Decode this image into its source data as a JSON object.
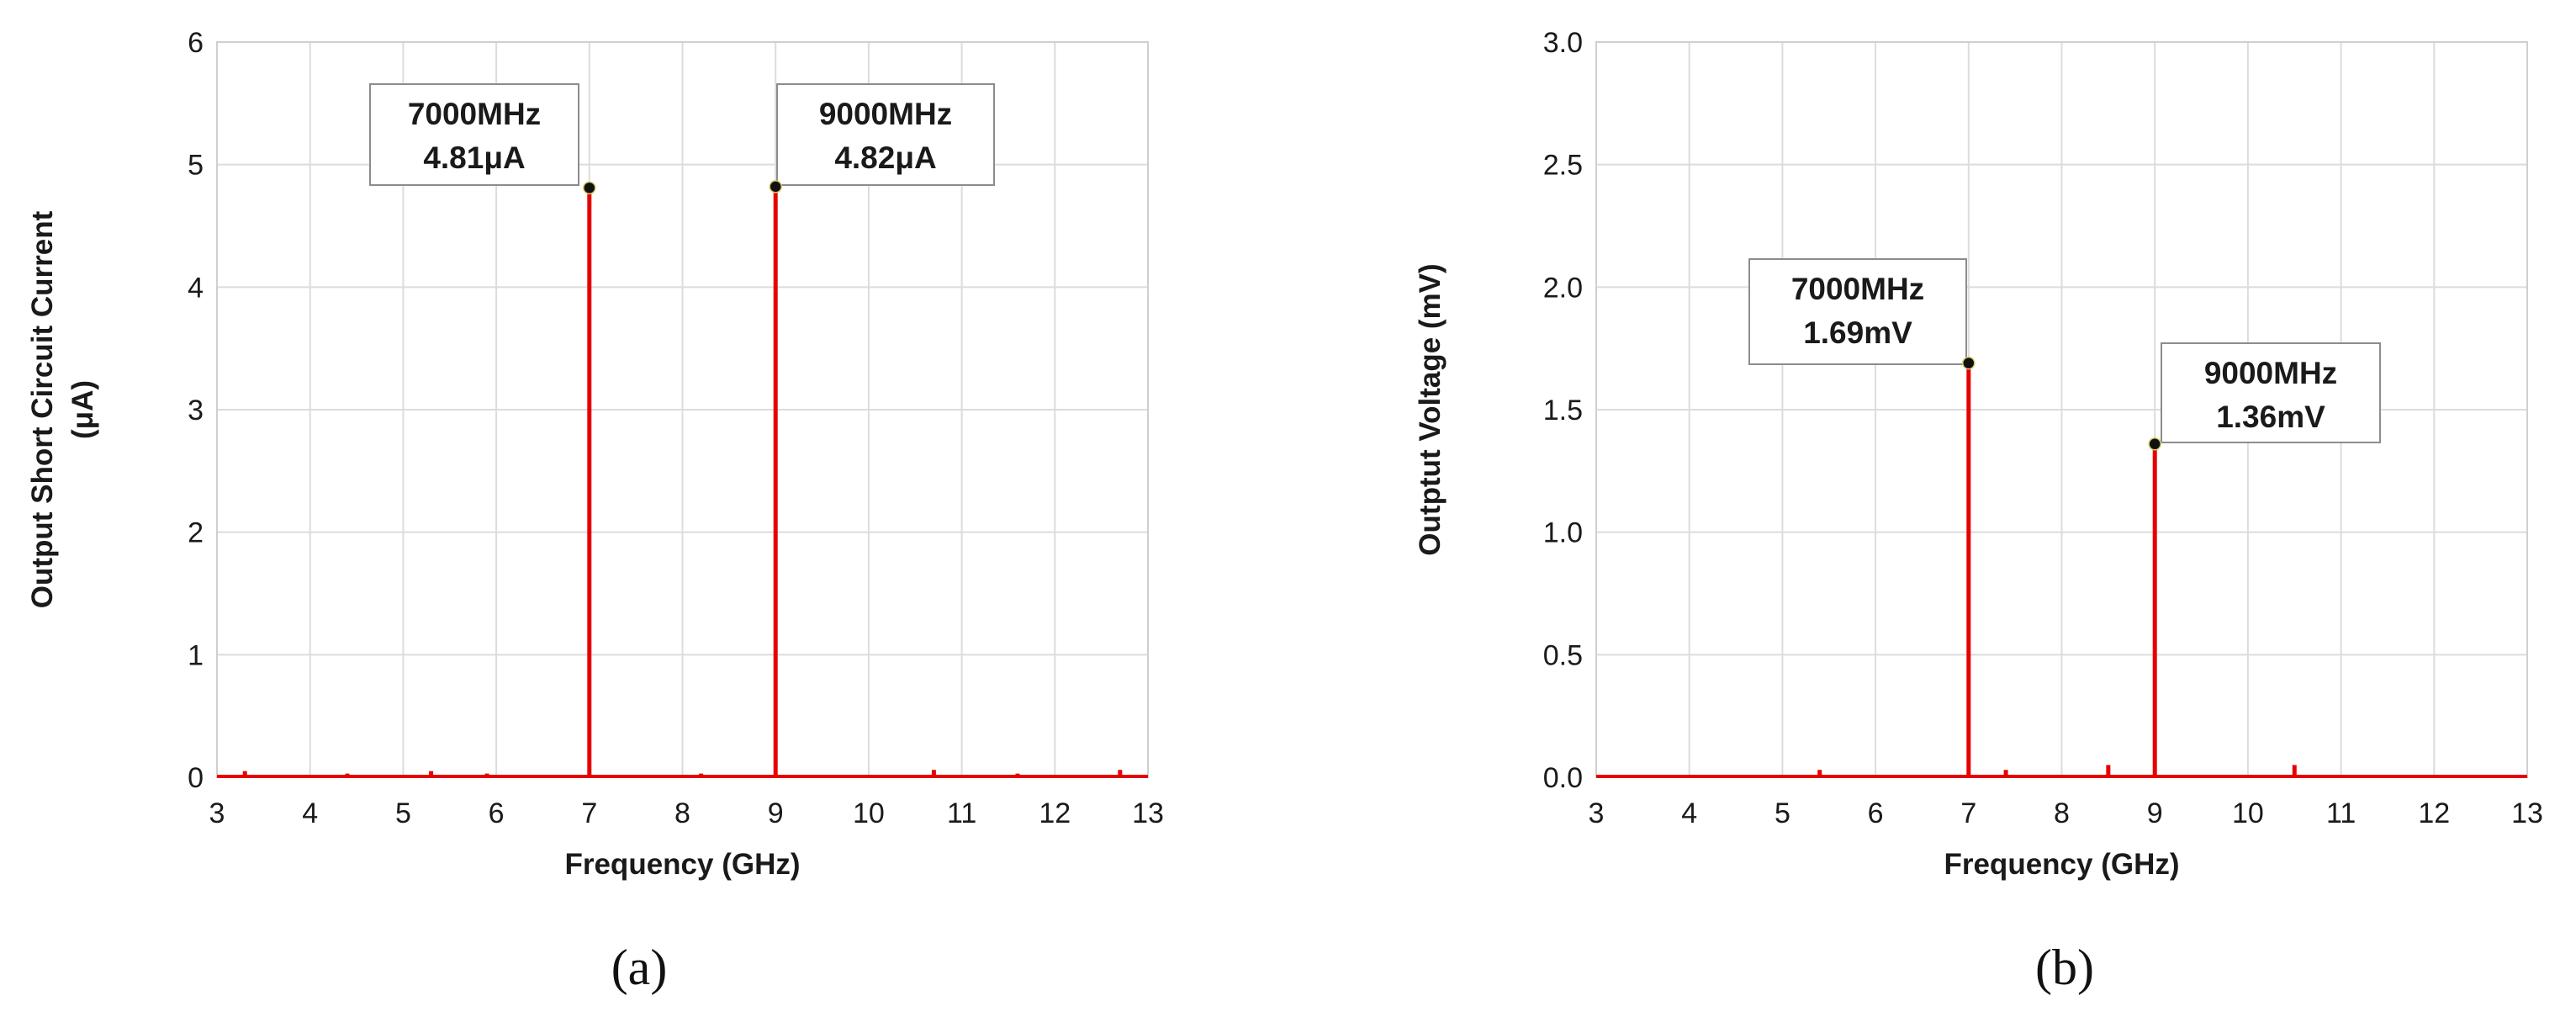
{
  "chart_data": [
    {
      "type": "line",
      "panel_label": "(a)",
      "xlabel": "Frequency (GHz)",
      "ylabel_lines": [
        "Output Short Circuit Current",
        "(μA)"
      ],
      "xlim": [
        3,
        13
      ],
      "ylim": [
        0,
        6
      ],
      "x_ticks": [
        "3",
        "4",
        "5",
        "6",
        "7",
        "8",
        "9",
        "10",
        "11",
        "12",
        "13"
      ],
      "y_ticks": [
        "0",
        "1",
        "2",
        "3",
        "4",
        "5",
        "6"
      ],
      "grid": true,
      "series": [
        {
          "x": [
            3,
            3.3,
            5.3,
            7.0,
            9.0,
            10.7,
            12.7,
            13
          ],
          "y": [
            0.02,
            0.05,
            0.05,
            4.81,
            4.82,
            0.06,
            0.06,
            0.02
          ]
        }
      ],
      "peaks": [
        {
          "x": 7.0,
          "y": 4.81,
          "label_freq": "7000MHz",
          "label_value": "4.81μA"
        },
        {
          "x": 9.0,
          "y": 4.82,
          "label_freq": "9000MHz",
          "label_value": "4.82μA"
        }
      ],
      "noise": [
        {
          "x": 3.3,
          "y": 0.05
        },
        {
          "x": 4.4,
          "y": 0.03
        },
        {
          "x": 5.3,
          "y": 0.05
        },
        {
          "x": 5.9,
          "y": 0.03
        },
        {
          "x": 8.2,
          "y": 0.03
        },
        {
          "x": 10.7,
          "y": 0.06
        },
        {
          "x": 11.6,
          "y": 0.03
        },
        {
          "x": 12.7,
          "y": 0.06
        }
      ]
    },
    {
      "type": "line",
      "panel_label": "(b)",
      "xlabel": "Frequency (GHz)",
      "ylabel_lines": [
        "Outptut Voltage (mV)"
      ],
      "xlim": [
        3,
        13
      ],
      "ylim": [
        0,
        3
      ],
      "x_ticks": [
        "3",
        "4",
        "5",
        "6",
        "7",
        "8",
        "9",
        "10",
        "11",
        "12",
        "13"
      ],
      "y_ticks": [
        "0.0",
        "0.5",
        "1.0",
        "1.5",
        "2.0",
        "2.5",
        "3.0"
      ],
      "grid": true,
      "series": [
        {
          "x": [
            3,
            5.4,
            7.0,
            7.4,
            8.5,
            9.0,
            10.5,
            13
          ],
          "y": [
            0.0,
            0.03,
            1.69,
            0.03,
            0.05,
            1.36,
            0.05,
            0.0
          ]
        }
      ],
      "peaks": [
        {
          "x": 7.0,
          "y": 1.69,
          "label_freq": "7000MHz",
          "label_value": "1.69mV"
        },
        {
          "x": 9.0,
          "y": 1.36,
          "label_freq": "9000MHz",
          "label_value": "1.36mV"
        }
      ],
      "noise": [
        {
          "x": 5.4,
          "y": 0.03
        },
        {
          "x": 7.4,
          "y": 0.03
        },
        {
          "x": 8.5,
          "y": 0.05
        },
        {
          "x": 10.5,
          "y": 0.05
        },
        {
          "x": 12.1,
          "y": 0.01
        }
      ]
    }
  ]
}
